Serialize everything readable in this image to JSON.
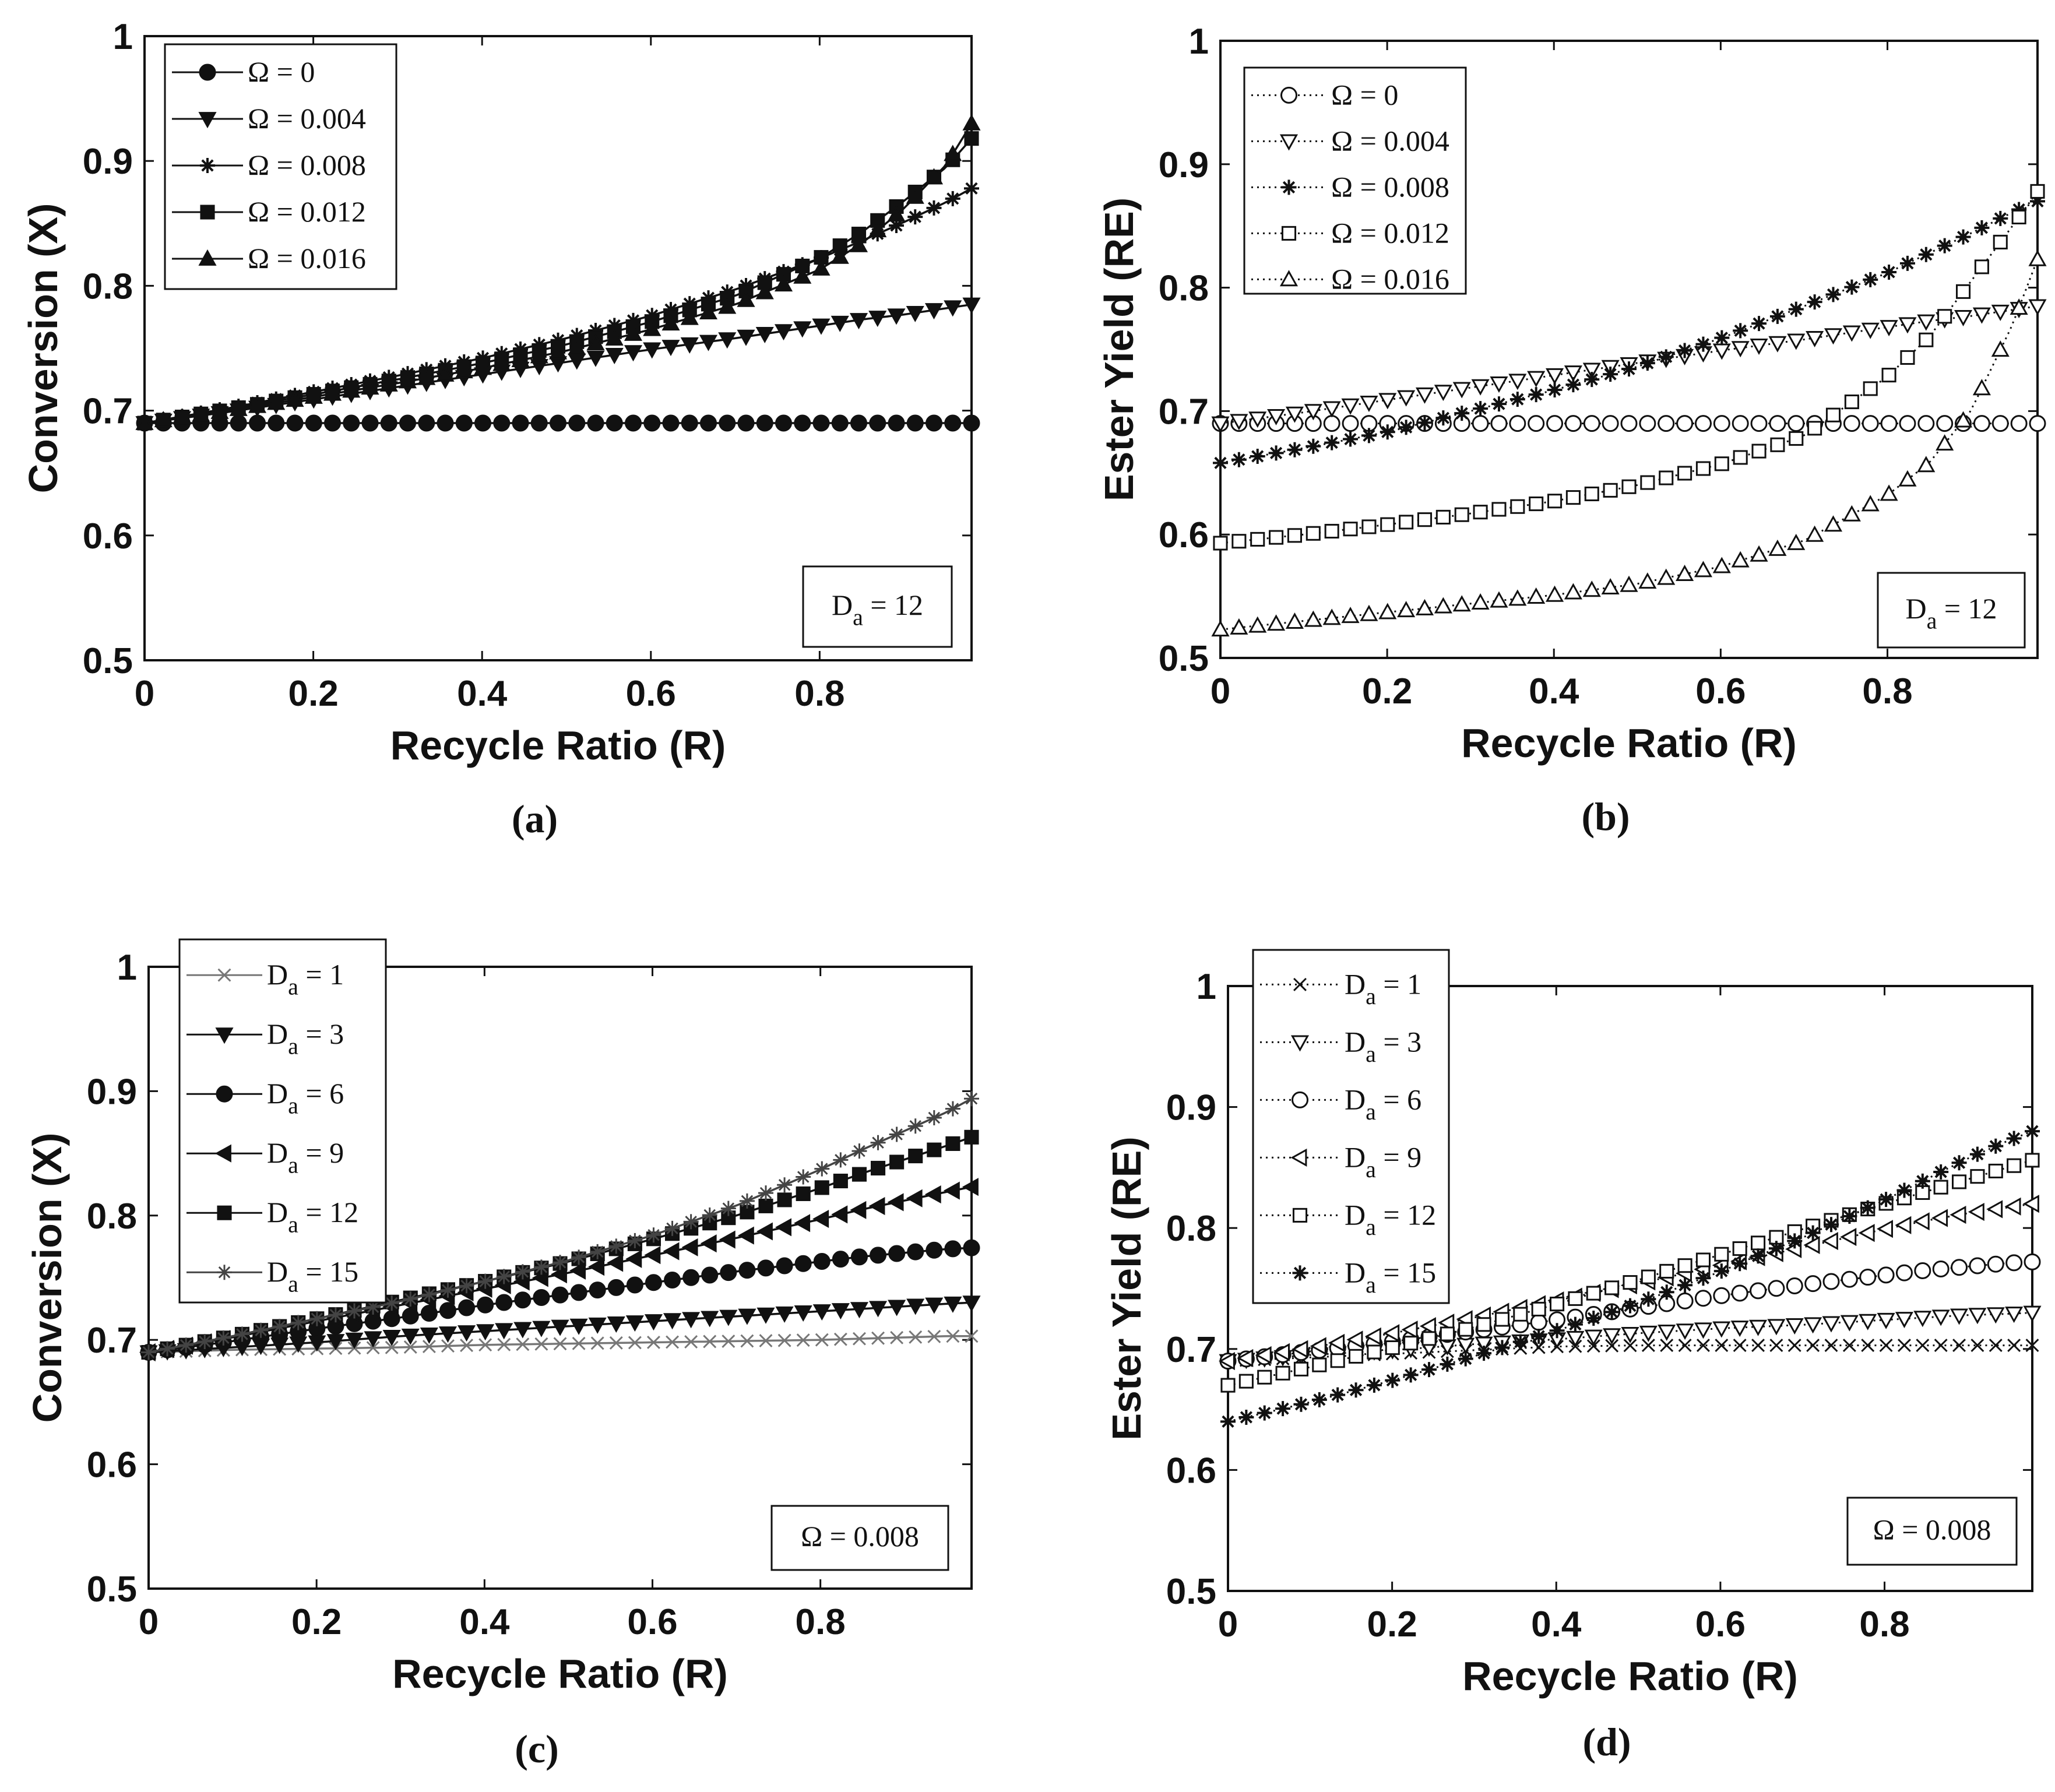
{
  "figure": {
    "panels": [
      "a",
      "b",
      "c",
      "d"
    ]
  },
  "chart_data": [
    {
      "id": "a",
      "type": "line",
      "panel_label": "(a)",
      "xlabel": "Recycle Ratio (R)",
      "ylabel": "Conversion (X)",
      "xlim": [
        0,
        0.98
      ],
      "ylim": [
        0.5,
        1
      ],
      "xticks": [
        0,
        0.2,
        0.4,
        0.6,
        0.8
      ],
      "xtick_labels": [
        "0",
        "0.2",
        "0.4",
        "0.6",
        "0.8"
      ],
      "yticks": [
        0.5,
        0.6,
        0.7,
        0.8,
        0.9,
        1
      ],
      "ytick_labels": [
        "0.5",
        "0.6",
        "0.7",
        "0.8",
        "0.9",
        "1"
      ],
      "annotation": {
        "base": "D",
        "sub": "a",
        "rest": " = 12",
        "position": "bottom-right"
      },
      "legend_position": "top-left",
      "x": [
        0,
        0.1,
        0.2,
        0.3,
        0.4,
        0.5,
        0.6,
        0.7,
        0.8,
        0.85,
        0.9,
        0.95,
        0.98
      ],
      "series": [
        {
          "name": "Ω = 0",
          "marker": "circle",
          "filled": true,
          "line": "solid",
          "color": "#111111",
          "values": [
            0.69,
            0.69,
            0.69,
            0.69,
            0.69,
            0.69,
            0.69,
            0.69,
            0.69,
            0.69,
            0.69,
            0.69,
            0.69
          ]
        },
        {
          "name": "Ω = 0.004",
          "marker": "triangle-down",
          "filled": true,
          "line": "solid",
          "color": "#111111",
          "values": [
            0.69,
            0.699,
            0.709,
            0.719,
            0.729,
            0.739,
            0.749,
            0.758,
            0.768,
            0.773,
            0.777,
            0.782,
            0.785
          ]
        },
        {
          "name": "Ω = 0.008",
          "marker": "star",
          "filled": true,
          "line": "solid",
          "color": "#111111",
          "values": [
            0.69,
            0.702,
            0.715,
            0.728,
            0.742,
            0.758,
            0.776,
            0.797,
            0.822,
            0.836,
            0.851,
            0.867,
            0.878
          ]
        },
        {
          "name": "Ω = 0.012",
          "marker": "square",
          "filled": true,
          "line": "solid",
          "color": "#111111",
          "values": [
            0.69,
            0.701,
            0.713,
            0.725,
            0.738,
            0.753,
            0.771,
            0.792,
            0.822,
            0.843,
            0.868,
            0.895,
            0.918
          ]
        },
        {
          "name": "Ω = 0.016",
          "marker": "triangle-up",
          "filled": true,
          "line": "solid",
          "color": "#111111",
          "values": [
            0.69,
            0.7,
            0.711,
            0.722,
            0.734,
            0.748,
            0.765,
            0.785,
            0.813,
            0.834,
            0.862,
            0.897,
            0.93
          ]
        }
      ]
    },
    {
      "id": "b",
      "type": "line",
      "panel_label": "(b)",
      "xlabel": "Recycle Ratio (R)",
      "ylabel": "Ester Yield (RE)",
      "xlim": [
        0,
        0.98
      ],
      "ylim": [
        0.5,
        1
      ],
      "xticks": [
        0,
        0.2,
        0.4,
        0.6,
        0.8
      ],
      "xtick_labels": [
        "0",
        "0.2",
        "0.4",
        "0.6",
        "0.8"
      ],
      "yticks": [
        0.5,
        0.6,
        0.7,
        0.8,
        0.9,
        1
      ],
      "ytick_labels": [
        "0.5",
        "0.6",
        "0.7",
        "0.8",
        "0.9",
        "1"
      ],
      "annotation": {
        "base": "D",
        "sub": "a",
        "rest": " = 12",
        "position": "bottom-right"
      },
      "legend_position": "top-left",
      "x": [
        0,
        0.1,
        0.2,
        0.3,
        0.4,
        0.5,
        0.6,
        0.7,
        0.8,
        0.85,
        0.9,
        0.95,
        0.98
      ],
      "series": [
        {
          "name": "Ω = 0",
          "marker": "circle",
          "filled": false,
          "line": "dotted",
          "color": "#111111",
          "values": [
            0.69,
            0.69,
            0.69,
            0.69,
            0.69,
            0.69,
            0.69,
            0.69,
            0.69,
            0.69,
            0.69,
            0.69,
            0.69
          ]
        },
        {
          "name": "Ω = 0.004",
          "marker": "triangle-down",
          "filled": false,
          "line": "dotted",
          "color": "#111111",
          "values": [
            0.69,
            0.699,
            0.709,
            0.719,
            0.729,
            0.739,
            0.749,
            0.758,
            0.768,
            0.773,
            0.777,
            0.782,
            0.785
          ]
        },
        {
          "name": "Ω = 0.008",
          "marker": "star",
          "filled": true,
          "line": "dotted",
          "color": "#111111",
          "values": [
            0.658,
            0.67,
            0.683,
            0.7,
            0.717,
            0.736,
            0.759,
            0.785,
            0.812,
            0.828,
            0.844,
            0.861,
            0.87
          ]
        },
        {
          "name": "Ω = 0.012",
          "marker": "square",
          "filled": false,
          "line": "dotted",
          "color": "#111111",
          "values": [
            0.593,
            0.6,
            0.608,
            0.617,
            0.627,
            0.64,
            0.657,
            0.68,
            0.728,
            0.76,
            0.805,
            0.85,
            0.878
          ]
        },
        {
          "name": "Ω = 0.016",
          "marker": "triangle-up",
          "filled": false,
          "line": "dotted",
          "color": "#111111",
          "values": [
            0.523,
            0.53,
            0.537,
            0.544,
            0.551,
            0.56,
            0.574,
            0.595,
            0.632,
            0.658,
            0.7,
            0.77,
            0.823
          ]
        }
      ]
    },
    {
      "id": "c",
      "type": "line",
      "panel_label": "(c)",
      "xlabel": "Recycle Ratio (R)",
      "ylabel": "Conversion (X)",
      "xlim": [
        0,
        0.98
      ],
      "ylim": [
        0.5,
        1
      ],
      "xticks": [
        0,
        0.2,
        0.4,
        0.6,
        0.8
      ],
      "xtick_labels": [
        "0",
        "0.2",
        "0.4",
        "0.6",
        "0.8"
      ],
      "yticks": [
        0.5,
        0.6,
        0.7,
        0.8,
        0.9,
        1
      ],
      "ytick_labels": [
        "0.5",
        "0.6",
        "0.7",
        "0.8",
        "0.9",
        "1"
      ],
      "annotation": {
        "base": "Ω",
        "sub": "",
        "rest": " = 0.008",
        "position": "bottom-right"
      },
      "legend_position": "top-left",
      "x": [
        0,
        0.1,
        0.2,
        0.3,
        0.4,
        0.5,
        0.6,
        0.7,
        0.8,
        0.85,
        0.9,
        0.95,
        0.98
      ],
      "series": [
        {
          "name": "1",
          "label_base": "D",
          "label_sub": "a",
          "label_rest": " = 1",
          "marker": "x",
          "filled": false,
          "line": "solid",
          "color": "#777777",
          "values": [
            0.69,
            0.692,
            0.693,
            0.694,
            0.696,
            0.697,
            0.698,
            0.699,
            0.7,
            0.701,
            0.702,
            0.703,
            0.703
          ]
        },
        {
          "name": "3",
          "label_base": "D",
          "label_sub": "a",
          "label_rest": " = 3",
          "marker": "triangle-down",
          "filled": true,
          "line": "solid",
          "color": "#111111",
          "values": [
            0.69,
            0.694,
            0.698,
            0.703,
            0.707,
            0.711,
            0.715,
            0.719,
            0.723,
            0.725,
            0.727,
            0.729,
            0.73
          ]
        },
        {
          "name": "6",
          "label_base": "D",
          "label_sub": "a",
          "label_rest": " = 6",
          "marker": "circle",
          "filled": true,
          "line": "solid",
          "color": "#111111",
          "values": [
            0.69,
            0.699,
            0.709,
            0.718,
            0.728,
            0.737,
            0.746,
            0.755,
            0.763,
            0.767,
            0.77,
            0.773,
            0.774
          ]
        },
        {
          "name": "9",
          "label_base": "D",
          "label_sub": "a",
          "label_rest": " = 9",
          "marker": "triangle-left",
          "filled": true,
          "line": "solid",
          "color": "#111111",
          "values": [
            0.69,
            0.702,
            0.715,
            0.728,
            0.741,
            0.754,
            0.768,
            0.782,
            0.797,
            0.805,
            0.812,
            0.819,
            0.823
          ]
        },
        {
          "name": "12",
          "label_base": "D",
          "label_sub": "a",
          "label_rest": " = 12",
          "marker": "square",
          "filled": true,
          "line": "solid",
          "color": "#111111",
          "values": [
            0.69,
            0.703,
            0.717,
            0.732,
            0.747,
            0.763,
            0.781,
            0.8,
            0.822,
            0.834,
            0.845,
            0.856,
            0.863
          ]
        },
        {
          "name": "15",
          "label_base": "D",
          "label_sub": "a",
          "label_rest": " = 15",
          "marker": "star",
          "filled": false,
          "line": "solid",
          "color": "#444444",
          "values": [
            0.69,
            0.703,
            0.717,
            0.731,
            0.747,
            0.764,
            0.784,
            0.808,
            0.837,
            0.853,
            0.868,
            0.883,
            0.894
          ]
        }
      ]
    },
    {
      "id": "d",
      "type": "line",
      "panel_label": "(d)",
      "xlabel": "Recycle Ratio (R)",
      "ylabel": "Ester Yield (RE)",
      "xlim": [
        0,
        0.98
      ],
      "ylim": [
        0.5,
        1
      ],
      "xticks": [
        0,
        0.2,
        0.4,
        0.6,
        0.8
      ],
      "xtick_labels": [
        "0",
        "0.2",
        "0.4",
        "0.6",
        "0.8"
      ],
      "yticks": [
        0.5,
        0.6,
        0.7,
        0.8,
        0.9,
        1
      ],
      "ytick_labels": [
        "0.5",
        "0.6",
        "0.7",
        "0.8",
        "0.9",
        "1"
      ],
      "annotation": {
        "base": "Ω",
        "sub": "",
        "rest": " = 0.008",
        "position": "bottom-right"
      },
      "legend_position": "top-left",
      "x": [
        0,
        0.1,
        0.2,
        0.3,
        0.4,
        0.5,
        0.6,
        0.7,
        0.8,
        0.85,
        0.9,
        0.95,
        0.98
      ],
      "series": [
        {
          "name": "1",
          "label_base": "D",
          "label_sub": "a",
          "label_rest": " = 1",
          "marker": "x",
          "filled": false,
          "line": "dotted",
          "color": "#111111",
          "values": [
            0.69,
            0.693,
            0.696,
            0.699,
            0.702,
            0.703,
            0.703,
            0.703,
            0.703,
            0.703,
            0.703,
            0.703,
            0.703
          ]
        },
        {
          "name": "3",
          "label_base": "D",
          "label_sub": "a",
          "label_rest": " = 3",
          "marker": "triangle-down",
          "filled": false,
          "line": "dotted",
          "color": "#111111",
          "values": [
            0.69,
            0.695,
            0.699,
            0.704,
            0.708,
            0.713,
            0.717,
            0.72,
            0.724,
            0.726,
            0.728,
            0.729,
            0.73
          ]
        },
        {
          "name": "6",
          "label_base": "D",
          "label_sub": "a",
          "label_rest": " = 6",
          "marker": "circle",
          "filled": false,
          "line": "dotted",
          "color": "#111111",
          "values": [
            0.69,
            0.698,
            0.706,
            0.715,
            0.724,
            0.734,
            0.744,
            0.753,
            0.761,
            0.765,
            0.768,
            0.771,
            0.772
          ]
        },
        {
          "name": "9",
          "label_base": "D",
          "label_sub": "a",
          "label_rest": " = 9",
          "marker": "triangle-left",
          "filled": false,
          "line": "dotted",
          "color": "#111111",
          "values": [
            0.69,
            0.701,
            0.713,
            0.726,
            0.74,
            0.754,
            0.769,
            0.784,
            0.799,
            0.806,
            0.812,
            0.817,
            0.82
          ]
        },
        {
          "name": "12",
          "label_base": "D",
          "label_sub": "a",
          "label_rest": " = 12",
          "marker": "square",
          "filled": false,
          "line": "dotted",
          "color": "#111111",
          "values": [
            0.67,
            0.685,
            0.701,
            0.718,
            0.737,
            0.757,
            0.778,
            0.799,
            0.82,
            0.83,
            0.84,
            0.85,
            0.856
          ]
        },
        {
          "name": "15",
          "label_base": "D",
          "label_sub": "a",
          "label_rest": " = 15",
          "marker": "star",
          "filled": true,
          "line": "dotted",
          "color": "#111111",
          "values": [
            0.64,
            0.656,
            0.674,
            0.694,
            0.715,
            0.738,
            0.764,
            0.792,
            0.823,
            0.84,
            0.857,
            0.872,
            0.88
          ]
        }
      ]
    }
  ]
}
